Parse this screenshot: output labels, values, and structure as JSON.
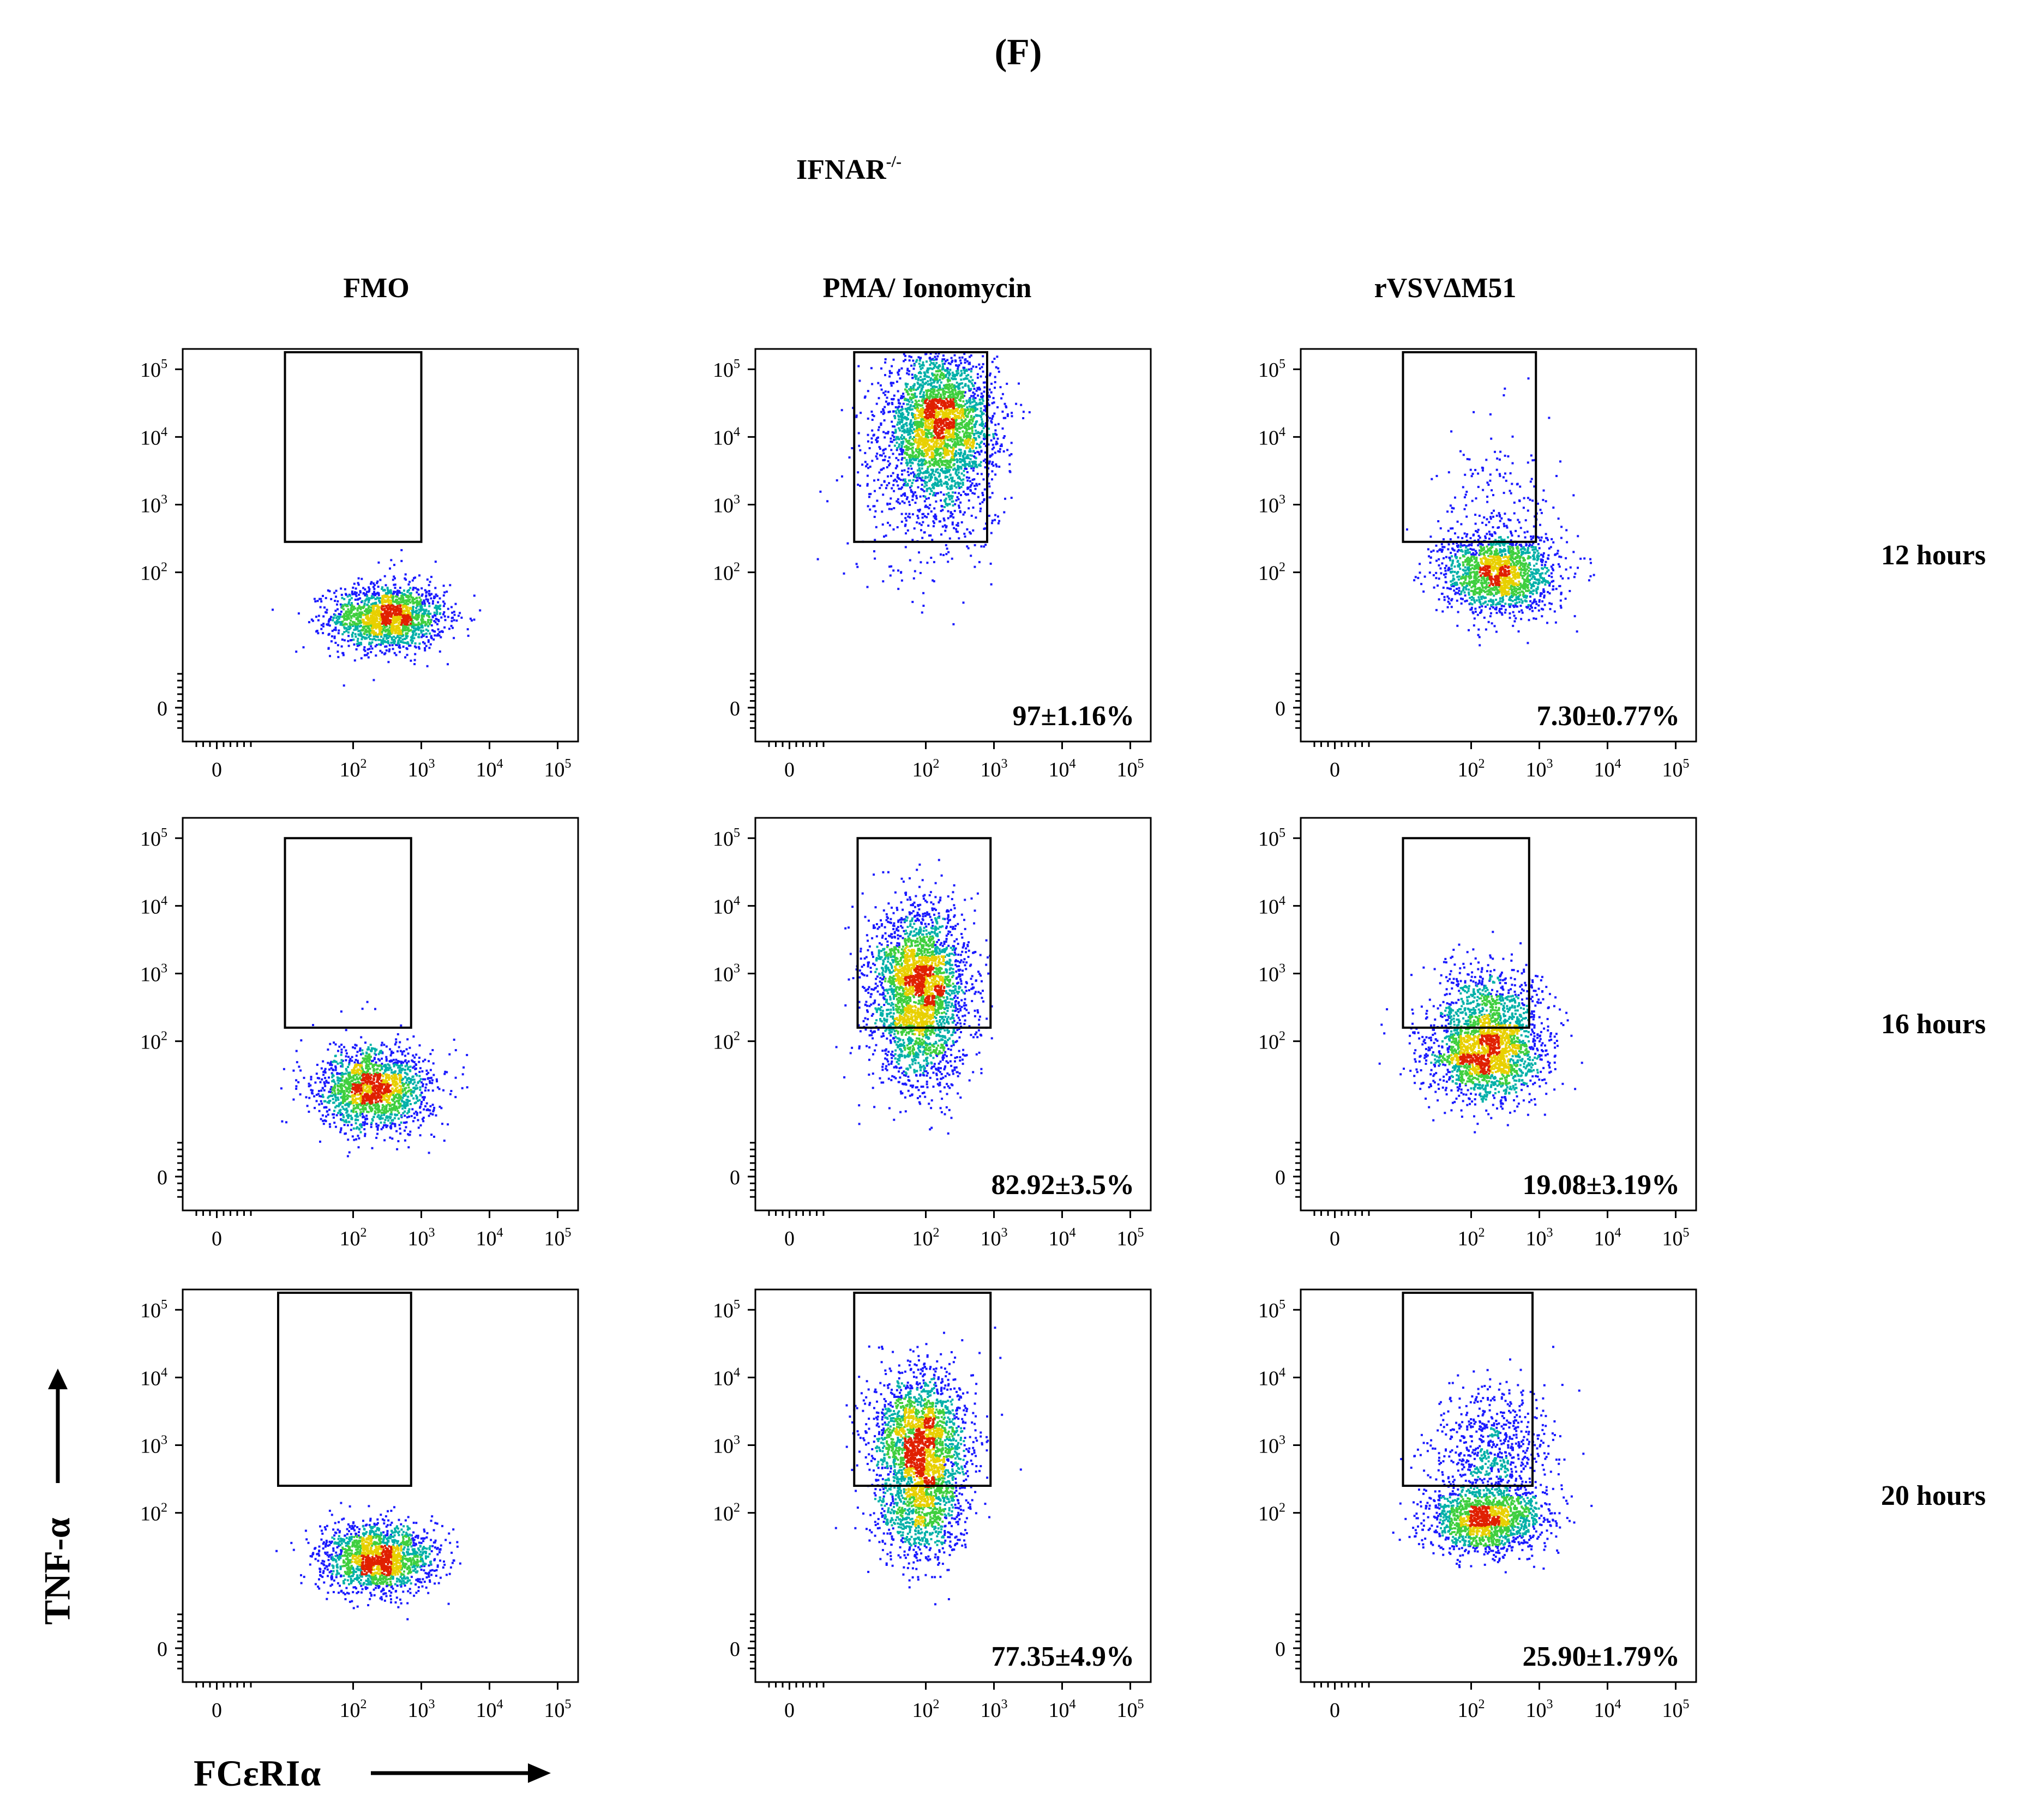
{
  "panel_label": "(F)",
  "genotype": {
    "base": "IFNAR",
    "superscript": "-/-"
  },
  "columns": [
    "FMO",
    "PMA/ Ionomycin",
    "rVSVΔM51"
  ],
  "rows": [
    "12 hours",
    "16 hours",
    "20 hours"
  ],
  "axis_titles": {
    "y": "TNF-α",
    "x": "FCεRIα"
  },
  "axis_ticks": {
    "x": [
      {
        "v": 0,
        "base": "0",
        "exp": ""
      },
      {
        "v": 2,
        "base": "10",
        "exp": "2"
      },
      {
        "v": 3,
        "base": "10",
        "exp": "3"
      },
      {
        "v": 4,
        "base": "10",
        "exp": "4"
      },
      {
        "v": 5,
        "base": "10",
        "exp": "5"
      }
    ],
    "y": [
      {
        "v": 0,
        "base": "0",
        "exp": ""
      },
      {
        "v": 2,
        "base": "10",
        "exp": "2"
      },
      {
        "v": 3,
        "base": "10",
        "exp": "3"
      },
      {
        "v": 4,
        "base": "10",
        "exp": "4"
      },
      {
        "v": 5,
        "base": "10",
        "exp": "5"
      }
    ]
  },
  "density_colors": [
    "#1a1aff",
    "#00b0a8",
    "#3fcf3f",
    "#e8d000",
    "#e02000"
  ],
  "chart_data": {
    "type": "scatter",
    "scale": "biexponential (log above 10^2)",
    "xlim": [
      -0.5,
      5.3
    ],
    "ylim": [
      -0.5,
      5.3
    ],
    "panels": [
      {
        "row": "12 hours",
        "column": "FMO",
        "gate": {
          "x": [
            1.0,
            3.0
          ],
          "y": [
            2.45,
            5.4
          ]
        },
        "pct": "",
        "cells": [
          {
            "cx": 2.5,
            "cy": 1.35,
            "sx": 0.42,
            "sy": 0.24,
            "n": 1700
          },
          {
            "cx": 2.6,
            "cy": 2.2,
            "sx": 0.15,
            "sy": 0.06,
            "n": 6
          }
        ]
      },
      {
        "row": "12 hours",
        "column": "PMA/ Ionomycin",
        "gate": {
          "x": [
            0.95,
            2.9
          ],
          "y": [
            2.45,
            5.4
          ]
        },
        "pct": "97±1.16%",
        "cells": [
          {
            "cx": 2.2,
            "cy": 4.2,
            "sx": 0.4,
            "sy": 0.52,
            "n": 2800
          },
          {
            "cx": 2.0,
            "cy": 3.2,
            "sx": 0.5,
            "sy": 0.6,
            "n": 350
          },
          {
            "cx": 2.0,
            "cy": 2.1,
            "sx": 0.5,
            "sy": 0.35,
            "n": 25
          }
        ]
      },
      {
        "row": "12 hours",
        "column": "rVSVΔM51",
        "gate": {
          "x": [
            1.0,
            2.95
          ],
          "y": [
            2.45,
            5.4
          ]
        },
        "pct": "7.30±0.77%",
        "cells": [
          {
            "cx": 2.4,
            "cy": 2.0,
            "sx": 0.42,
            "sy": 0.3,
            "n": 1700
          },
          {
            "cx": 2.4,
            "cy": 3.05,
            "sx": 0.45,
            "sy": 0.45,
            "n": 140
          },
          {
            "cx": 2.5,
            "cy": 4.3,
            "sx": 0.4,
            "sy": 0.4,
            "n": 6
          }
        ]
      },
      {
        "row": "16 hours",
        "column": "FMO",
        "gate": {
          "x": [
            1.0,
            2.85
          ],
          "y": [
            2.2,
            5.0
          ]
        },
        "pct": "",
        "cells": [
          {
            "cx": 2.3,
            "cy": 1.3,
            "sx": 0.42,
            "sy": 0.3,
            "n": 1700
          },
          {
            "cx": 2.5,
            "cy": 2.5,
            "sx": 0.3,
            "sy": 0.1,
            "n": 3
          }
        ]
      },
      {
        "row": "16 hours",
        "column": "PMA/ Ionomycin",
        "gate": {
          "x": [
            1.0,
            2.95
          ],
          "y": [
            2.2,
            5.0
          ]
        },
        "pct": "82.92±3.5%",
        "cells": [
          {
            "cx": 1.9,
            "cy": 2.9,
            "sx": 0.35,
            "sy": 0.55,
            "n": 2400
          },
          {
            "cx": 1.9,
            "cy": 1.9,
            "sx": 0.35,
            "sy": 0.4,
            "n": 500
          }
        ]
      },
      {
        "row": "16 hours",
        "column": "rVSVΔM51",
        "gate": {
          "x": [
            1.0,
            2.85
          ],
          "y": [
            2.2,
            5.0
          ]
        },
        "pct": "19.08±3.19%",
        "cells": [
          {
            "cx": 2.2,
            "cy": 1.8,
            "sx": 0.42,
            "sy": 0.33,
            "n": 1800
          },
          {
            "cx": 2.3,
            "cy": 2.55,
            "sx": 0.42,
            "sy": 0.32,
            "n": 600
          }
        ]
      },
      {
        "row": "20 hours",
        "column": "FMO",
        "gate": {
          "x": [
            0.9,
            2.85
          ],
          "y": [
            2.4,
            5.4
          ]
        },
        "pct": "",
        "cells": [
          {
            "cx": 2.35,
            "cy": 1.35,
            "sx": 0.42,
            "sy": 0.25,
            "n": 1700
          }
        ]
      },
      {
        "row": "20 hours",
        "column": "PMA/ Ionomycin",
        "gate": {
          "x": [
            0.95,
            2.95
          ],
          "y": [
            2.4,
            5.4
          ]
        },
        "pct": "77.35±4.9%",
        "cells": [
          {
            "cx": 1.9,
            "cy": 3.0,
            "sx": 0.35,
            "sy": 0.55,
            "n": 2300
          },
          {
            "cx": 1.9,
            "cy": 1.9,
            "sx": 0.3,
            "sy": 0.35,
            "n": 600
          }
        ]
      },
      {
        "row": "20 hours",
        "column": "rVSVΔM51",
        "gate": {
          "x": [
            1.0,
            2.9
          ],
          "y": [
            2.4,
            5.4
          ]
        },
        "pct": "25.90±1.79%",
        "cells": [
          {
            "cx": 2.2,
            "cy": 1.9,
            "sx": 0.42,
            "sy": 0.25,
            "n": 1500
          },
          {
            "cx": 2.3,
            "cy": 2.95,
            "sx": 0.45,
            "sy": 0.45,
            "n": 700
          }
        ]
      }
    ]
  }
}
